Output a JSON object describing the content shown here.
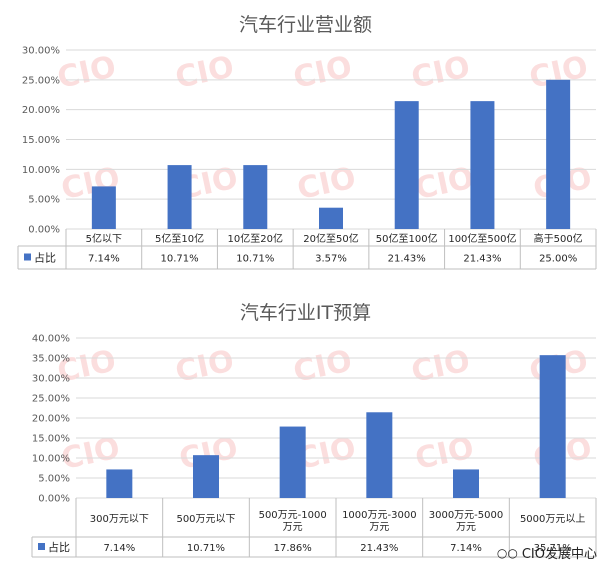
{
  "brand": {
    "icon": "wechat-icon",
    "text": "CIO发展中心"
  },
  "watermark": {
    "text": "CIO"
  },
  "colors": {
    "bar": "#4472c4",
    "grid": "#d9d9d9",
    "axis": "#bfbfbf"
  },
  "chart_data": [
    {
      "type": "bar",
      "title": "汽车行业营业额",
      "categories": [
        "5亿以下",
        "5亿至10亿",
        "10亿至20亿",
        "20亿至50亿",
        "50亿至100亿",
        "100亿至500亿",
        "高于500亿"
      ],
      "series": [
        {
          "name": "占比",
          "values": [
            7.14,
            10.71,
            10.71,
            3.57,
            21.43,
            21.43,
            25.0
          ]
        }
      ],
      "data_labels": [
        "7.14%",
        "10.71%",
        "10.71%",
        "3.57%",
        "21.43%",
        "21.43%",
        "25.00%"
      ],
      "yticks": [
        "0.00%",
        "5.00%",
        "10.00%",
        "15.00%",
        "20.00%",
        "25.00%",
        "30.00%"
      ],
      "ylim": [
        0,
        30
      ],
      "grid": true,
      "legend": "data-table",
      "xlabel": "",
      "ylabel": ""
    },
    {
      "type": "bar",
      "title": "汽车行业IT预算",
      "categories": [
        "300万元以下",
        "500万元以下",
        "500万元-1000万元",
        "1000万元-3000万元",
        "3000万元-5000万元",
        "5000万元以上"
      ],
      "series": [
        {
          "name": "占比",
          "values": [
            7.14,
            10.71,
            17.86,
            21.43,
            7.14,
            35.71
          ]
        }
      ],
      "data_labels": [
        "7.14%",
        "10.71%",
        "17.86%",
        "21.43%",
        "7.14%",
        "35.71%"
      ],
      "yticks": [
        "0.00%",
        "5.00%",
        "10.00%",
        "15.00%",
        "20.00%",
        "25.00%",
        "30.00%",
        "35.00%",
        "40.00%"
      ],
      "ylim": [
        0,
        40
      ],
      "grid": true,
      "legend": "data-table",
      "xlabel": "",
      "ylabel": ""
    }
  ]
}
